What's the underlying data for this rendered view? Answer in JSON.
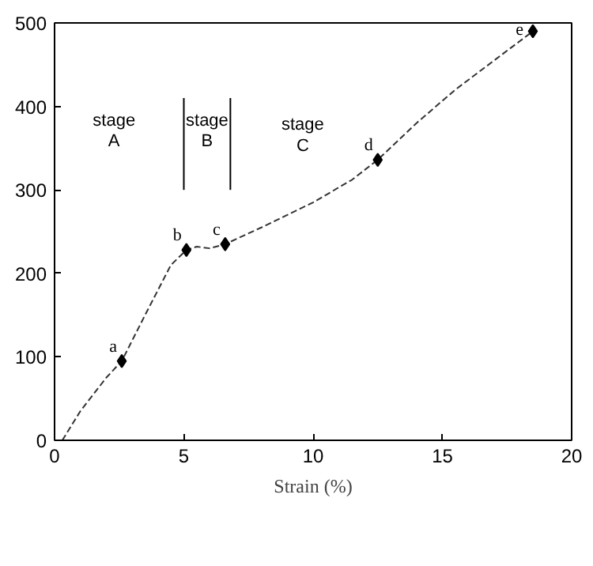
{
  "chart_data": {
    "type": "line",
    "xlabel": "Strain (%)",
    "xlim": [
      0,
      20
    ],
    "ylim": [
      0,
      500
    ],
    "xticks": [
      0,
      5,
      10,
      15,
      20
    ],
    "yticks": [
      0,
      100,
      200,
      300,
      400,
      500
    ],
    "grid": false,
    "series": [
      {
        "color": "#333333",
        "line_style": "dashed",
        "marker": "none",
        "x": [
          0.3,
          1,
          1.5,
          2,
          2.6,
          3.5,
          4.5,
          5.1,
          5.5,
          6,
          6.6,
          8,
          10,
          11.5,
          12.5,
          14,
          15.5,
          17,
          18.5
        ],
        "values": [
          0,
          35,
          55,
          75,
          95,
          150,
          210,
          228,
          232,
          230,
          235,
          255,
          285,
          312,
          336,
          380,
          420,
          455,
          490
        ]
      },
      {
        "type": "scatter",
        "color": "#000000",
        "marker": "diamond",
        "x": [
          2.6,
          5.1,
          6.6,
          12.5,
          18.5
        ],
        "values": [
          95,
          228,
          235,
          336,
          490
        ]
      },
      {
        "type": "line",
        "color": "#000000",
        "line_style": "solid",
        "marker": "none",
        "x": [
          5,
          5
        ],
        "values": [
          300,
          410
        ]
      },
      {
        "type": "line",
        "color": "#000000",
        "line_style": "solid",
        "marker": "none",
        "x": [
          6.8,
          6.8
        ],
        "values": [
          300,
          410
        ]
      }
    ],
    "annotations": [
      {
        "text": "a",
        "x": 2.6,
        "y": 95
      },
      {
        "text": "b",
        "x": 5.1,
        "y": 228
      },
      {
        "text": "c",
        "x": 6.6,
        "y": 235
      },
      {
        "text": "d",
        "x": 12.5,
        "y": 336
      },
      {
        "text": "e",
        "x": 18.5,
        "y": 490
      },
      "stage A",
      "stage B",
      "stage C"
    ]
  }
}
